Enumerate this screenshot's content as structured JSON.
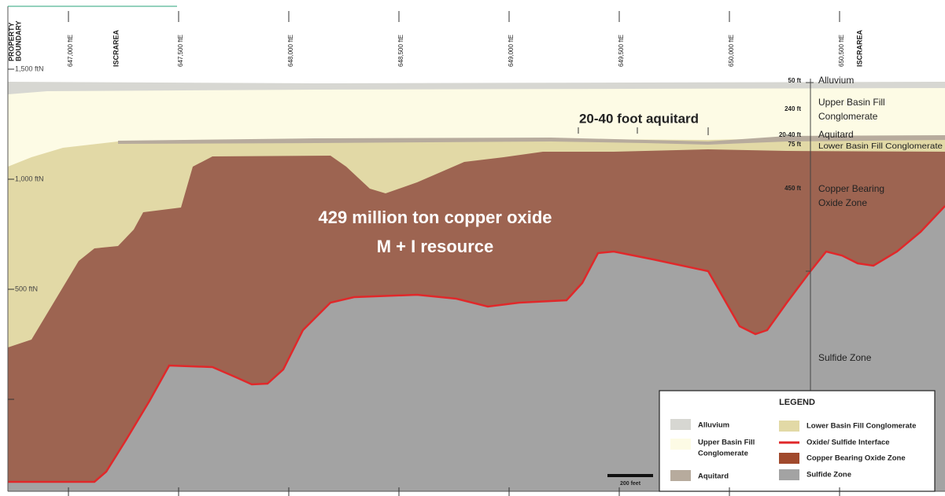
{
  "top_labels": {
    "property_boundary": [
      "PROPERTY",
      "BOUNDARY"
    ],
    "eastings": [
      "647,000 ftE",
      "647,500 ftE",
      "648,000 ftE",
      "648,500 ftE",
      "649,000 ftE",
      "649,500 ftE",
      "650,000 ftE",
      "650,500 ftE"
    ],
    "iscr_left": "ISCRAREA",
    "iscr_right": "ISCRAREA"
  },
  "elevation_labels": [
    "1,500 ftN",
    "1,000 ftN",
    "500 ftN"
  ],
  "thickness_labels": [
    "50 ft",
    "240 ft",
    "20-40 ft",
    "75 ft",
    "450 ft"
  ],
  "layer_labels": {
    "alluvium": "Alluvium",
    "upper_basin_fill": [
      "Upper Basin Fill",
      "Conglomerate"
    ],
    "aquitard": "Aquitard",
    "lower_basin_fill": "Lower Basin Fill Conglomerate",
    "oxide_zone": [
      "Copper Bearing",
      "Oxide Zone"
    ],
    "sulfide_zone": "Sulfide Zone"
  },
  "annotations": {
    "aquitard_note": "20-40 foot aquitard",
    "resource": [
      "429 million ton copper oxide",
      "M + I resource"
    ]
  },
  "legend": {
    "title": "LEGEND",
    "items": [
      {
        "label": [
          "Alluvium"
        ]
      },
      {
        "label": [
          "Upper Basin Fill",
          "Conglomerate"
        ]
      },
      {
        "label": [
          "Aquitard"
        ]
      },
      {
        "label": [
          "Lower Basin Fill Conglomerate"
        ]
      },
      {
        "label": [
          "Oxide/ Sulfide Interface"
        ]
      },
      {
        "label": [
          "Copper Bearing Oxide Zone"
        ]
      },
      {
        "label": [
          "Sulfide Zone"
        ]
      }
    ]
  },
  "scale_bar": "200 feet"
}
